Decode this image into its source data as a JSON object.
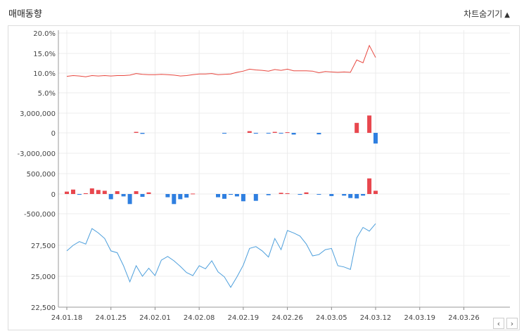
{
  "header": {
    "title": "매매동향",
    "toggle_label": "차트숨기기",
    "toggle_icon": "triangle-up-icon"
  },
  "nav": {
    "prev_label": "‹",
    "next_label": "›"
  },
  "chart_data": {
    "type": "combo",
    "x_ticks": [
      "24.01.18",
      "24.01.25",
      "24.02.01",
      "24.02.08",
      "24.02.19",
      "24.02.26",
      "24.03.05",
      "24.03.12",
      "24.03.19",
      "24.03.26"
    ],
    "panels": [
      {
        "type": "line",
        "color": "#e8473f",
        "y_ticks": [
          "20.0%",
          "15.0%",
          "10.0%",
          "5.0%"
        ],
        "ylim": [
          0,
          20
        ],
        "values": [
          9.1,
          9.3,
          9.2,
          9.0,
          9.3,
          9.2,
          9.3,
          9.2,
          9.3,
          9.3,
          9.4,
          9.8,
          9.6,
          9.5,
          9.5,
          9.6,
          9.5,
          9.4,
          9.2,
          9.3,
          9.5,
          9.7,
          9.7,
          9.8,
          9.5,
          9.6,
          9.7,
          10.1,
          10.4,
          10.9,
          10.7,
          10.6,
          10.4,
          10.8,
          10.6,
          10.9,
          10.5,
          10.5,
          10.5,
          10.4,
          10.0,
          10.3,
          10.2,
          10.1,
          10.2,
          10.1,
          13.2,
          12.5,
          16.8,
          13.8
        ]
      },
      {
        "type": "bar",
        "pos_color": "#e8474e",
        "neg_color": "#2f7fe0",
        "y_ticks": [
          "3,000,000",
          "0",
          "-3,000,000"
        ],
        "ylim": [
          -3000000,
          3000000
        ],
        "values": [
          0,
          0,
          0,
          0,
          0,
          0,
          0,
          0,
          0,
          0,
          0,
          150000,
          -150000,
          0,
          0,
          0,
          0,
          0,
          0,
          0,
          0,
          0,
          0,
          0,
          0,
          -120000,
          0,
          0,
          0,
          250000,
          -120000,
          0,
          -100000,
          150000,
          -80000,
          100000,
          -250000,
          0,
          0,
          0,
          -220000,
          0,
          0,
          0,
          0,
          0,
          1500000,
          0,
          2600000,
          -1600000
        ]
      },
      {
        "type": "bar",
        "pos_color": "#e8474e",
        "neg_color": "#2f7fe0",
        "y_ticks": [
          "500,000",
          "0",
          "-500,000"
        ],
        "ylim": [
          -500000,
          500000
        ],
        "values": [
          60000,
          110000,
          -20000,
          20000,
          140000,
          100000,
          80000,
          -130000,
          70000,
          -60000,
          -250000,
          70000,
          -70000,
          40000,
          0,
          0,
          -80000,
          -250000,
          -130000,
          -90000,
          10000,
          0,
          0,
          0,
          -80000,
          -120000,
          -20000,
          -60000,
          -180000,
          0,
          -170000,
          0,
          -30000,
          0,
          30000,
          20000,
          0,
          -20000,
          40000,
          0,
          -10000,
          0,
          -50000,
          0,
          -40000,
          -100000,
          -110000,
          -40000,
          390000,
          80000
        ]
      },
      {
        "type": "line",
        "color": "#4d9fdc",
        "y_ticks": [
          "27,500",
          "25,000",
          "22,500"
        ],
        "ylim": [
          22500,
          29000
        ],
        "values": [
          27050,
          27500,
          27800,
          27600,
          28850,
          28500,
          28050,
          27050,
          26900,
          25850,
          24550,
          25850,
          25000,
          25650,
          25050,
          26300,
          26600,
          26250,
          25800,
          25300,
          25050,
          25850,
          25600,
          26250,
          25350,
          24950,
          24100,
          24950,
          25900,
          27250,
          27400,
          27050,
          26550,
          28050,
          27150,
          28700,
          28500,
          28250,
          27600,
          26650,
          26750,
          27150,
          27250,
          25850,
          25750,
          25550,
          28100,
          28950,
          28650,
          29250
        ]
      }
    ]
  }
}
